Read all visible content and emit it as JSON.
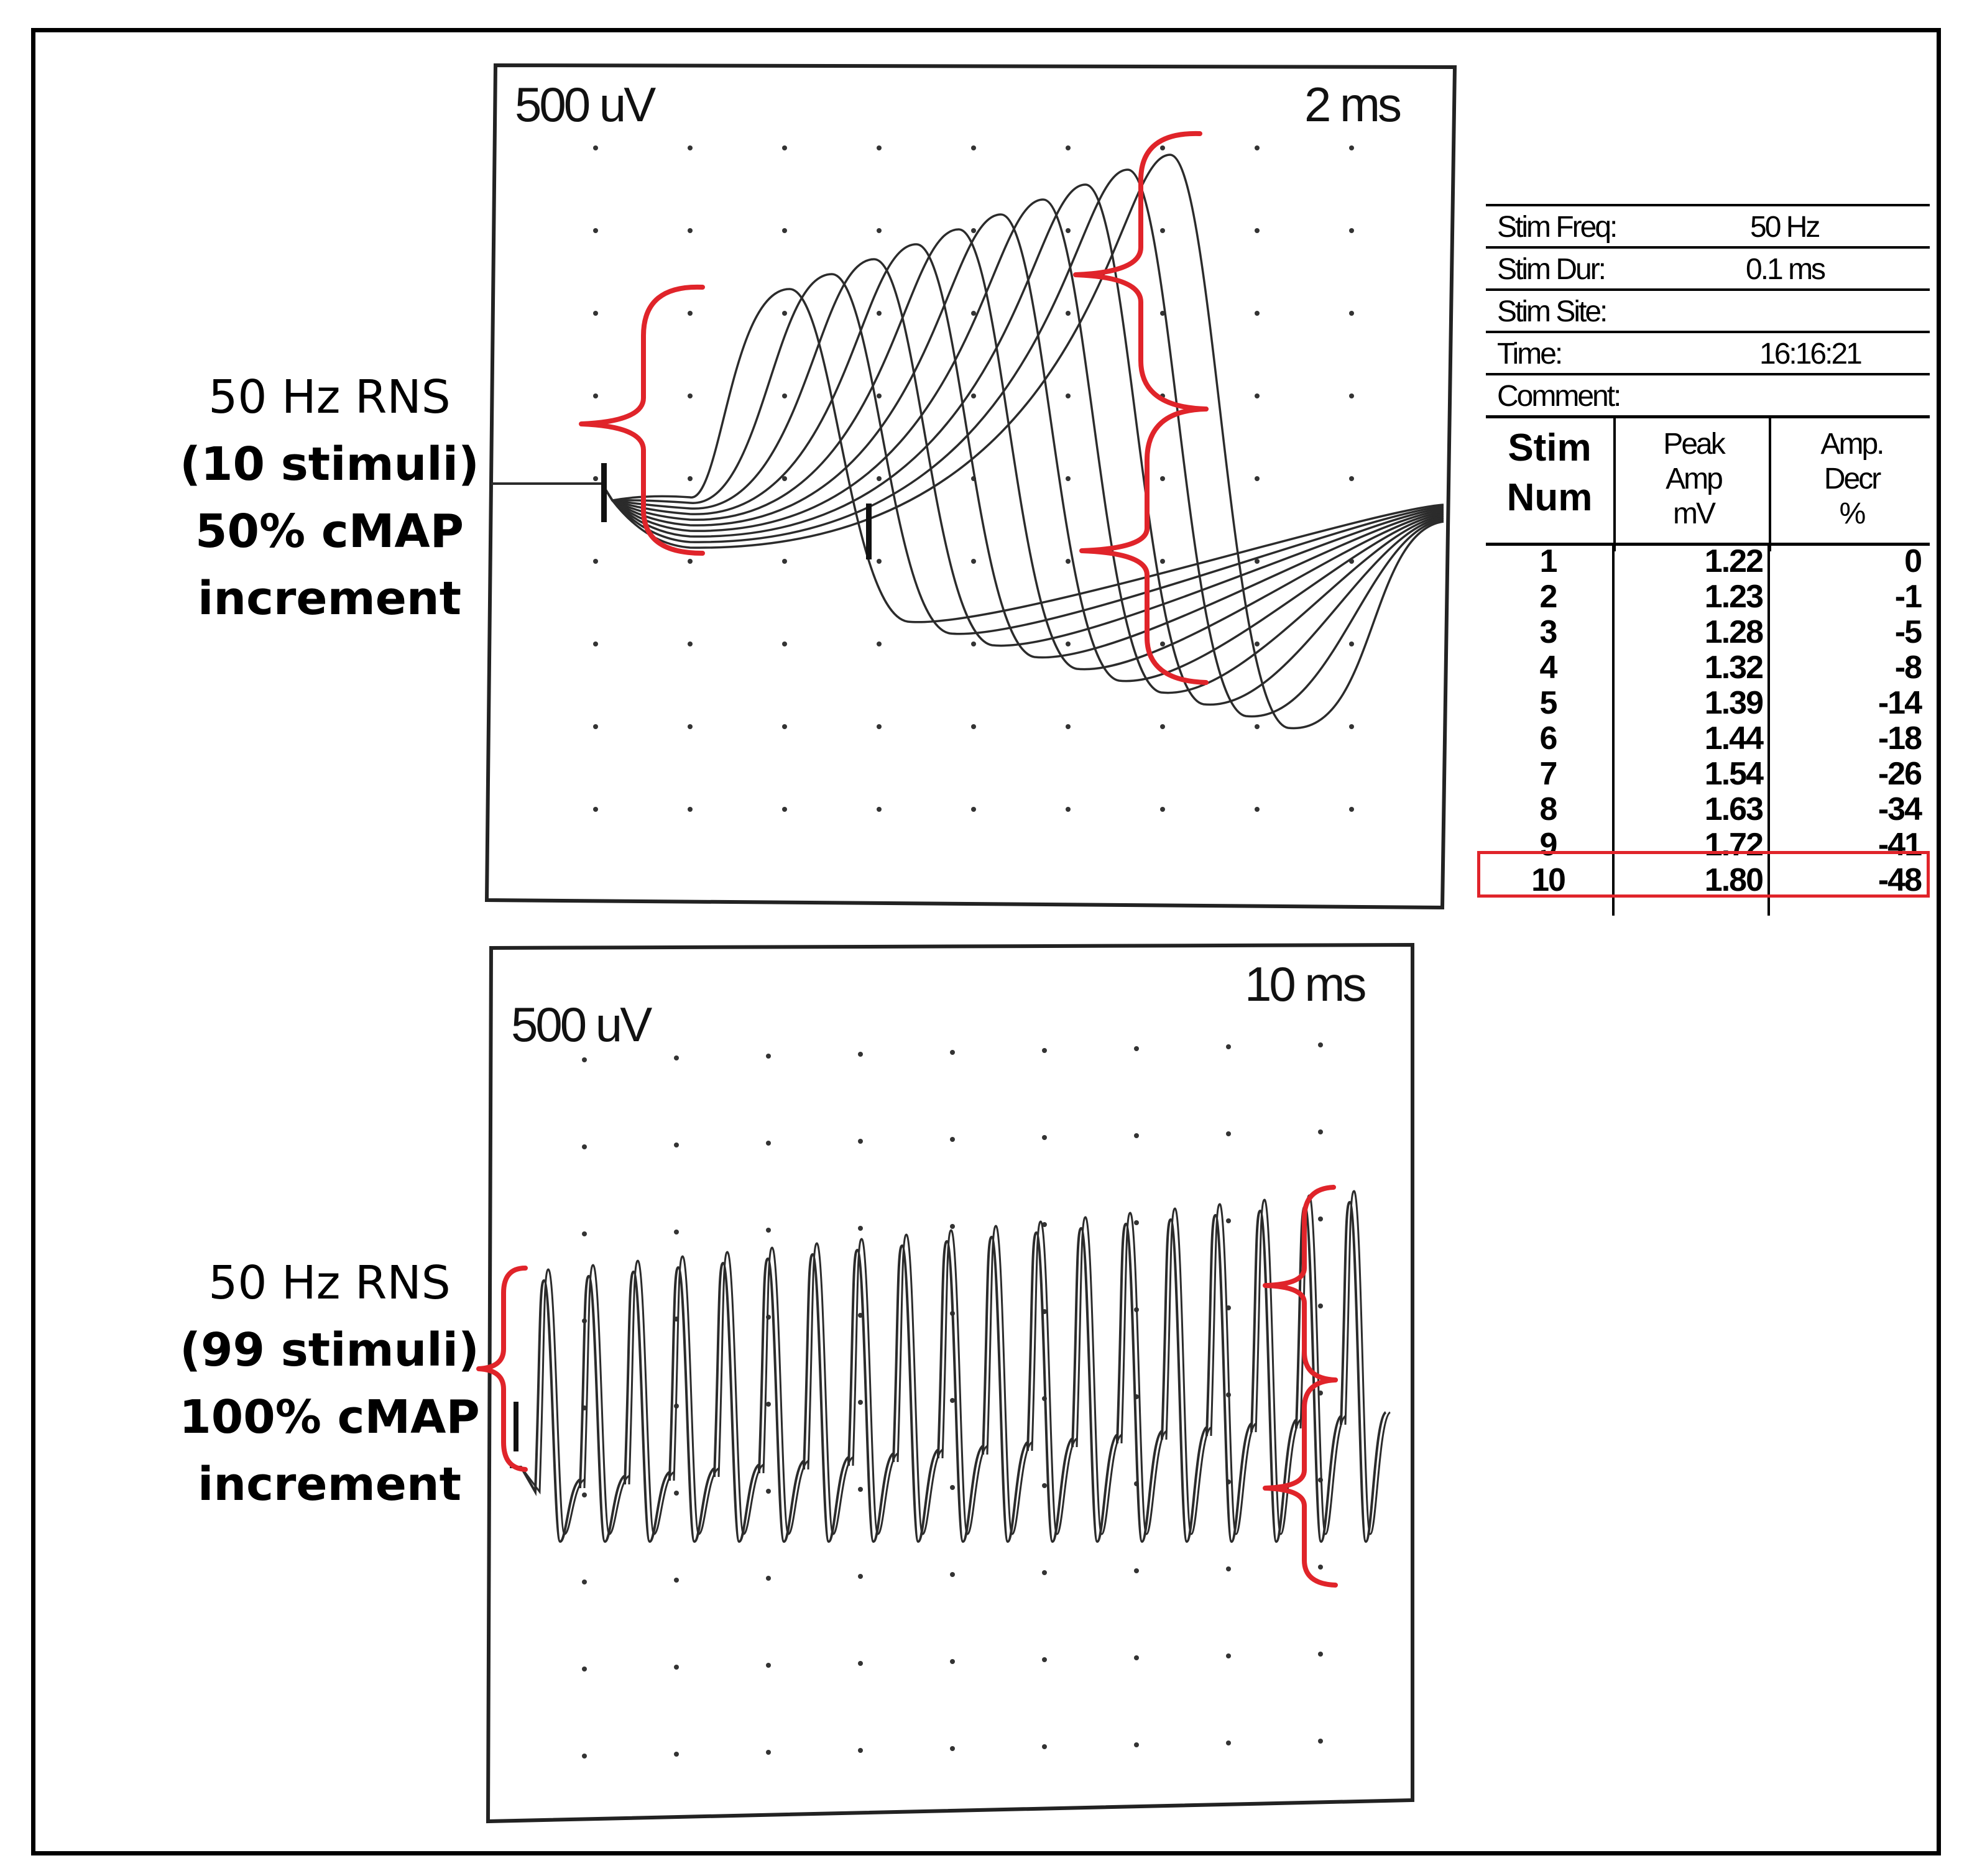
{
  "figure": {
    "labels": [
      {
        "line1": "50 Hz RNS",
        "line2": "(10 stimuli)",
        "line3": "50% cMAP",
        "line4": "increment"
      },
      {
        "line1": "50 Hz RNS",
        "line2": "(99 stimuli)",
        "line3": "100% cMAP",
        "line4": "increment"
      }
    ],
    "panels": [
      {
        "amp_scale": "500 uV",
        "time_scale": "2 ms"
      },
      {
        "amp_scale": "500 uV",
        "time_scale": "10 ms"
      }
    ],
    "colors": {
      "annotation": "#e0242a",
      "trace": "#2b2b2b",
      "frame": "#000000"
    }
  },
  "stim_table": {
    "info": [
      {
        "key": "Stim Freq:",
        "value": "50 Hz"
      },
      {
        "key": "Stim Dur:",
        "value": "0.1 ms"
      },
      {
        "key": "Stim Site:",
        "value": ""
      },
      {
        "key": "Time:",
        "value": "16:16:21"
      },
      {
        "key": "Comment:",
        "value": ""
      }
    ],
    "headers": {
      "num": [
        "Stim",
        "Num"
      ],
      "amp": [
        "Peak",
        "Amp",
        "mV"
      ],
      "decr": [
        "Amp.",
        "Decr",
        "%"
      ]
    },
    "rows": [
      {
        "num": "1",
        "amp": "1.22",
        "decr": "0"
      },
      {
        "num": "2",
        "amp": "1.23",
        "decr": "-1"
      },
      {
        "num": "3",
        "amp": "1.28",
        "decr": "-5"
      },
      {
        "num": "4",
        "amp": "1.32",
        "decr": "-8"
      },
      {
        "num": "5",
        "amp": "1.39",
        "decr": "-14"
      },
      {
        "num": "6",
        "amp": "1.44",
        "decr": "-18"
      },
      {
        "num": "7",
        "amp": "1.54",
        "decr": "-26"
      },
      {
        "num": "8",
        "amp": "1.63",
        "decr": "-34"
      },
      {
        "num": "9",
        "amp": "1.72",
        "decr": "-41"
      },
      {
        "num": "10",
        "amp": "1.80",
        "decr": "-48"
      }
    ],
    "highlighted_row": "10"
  }
}
